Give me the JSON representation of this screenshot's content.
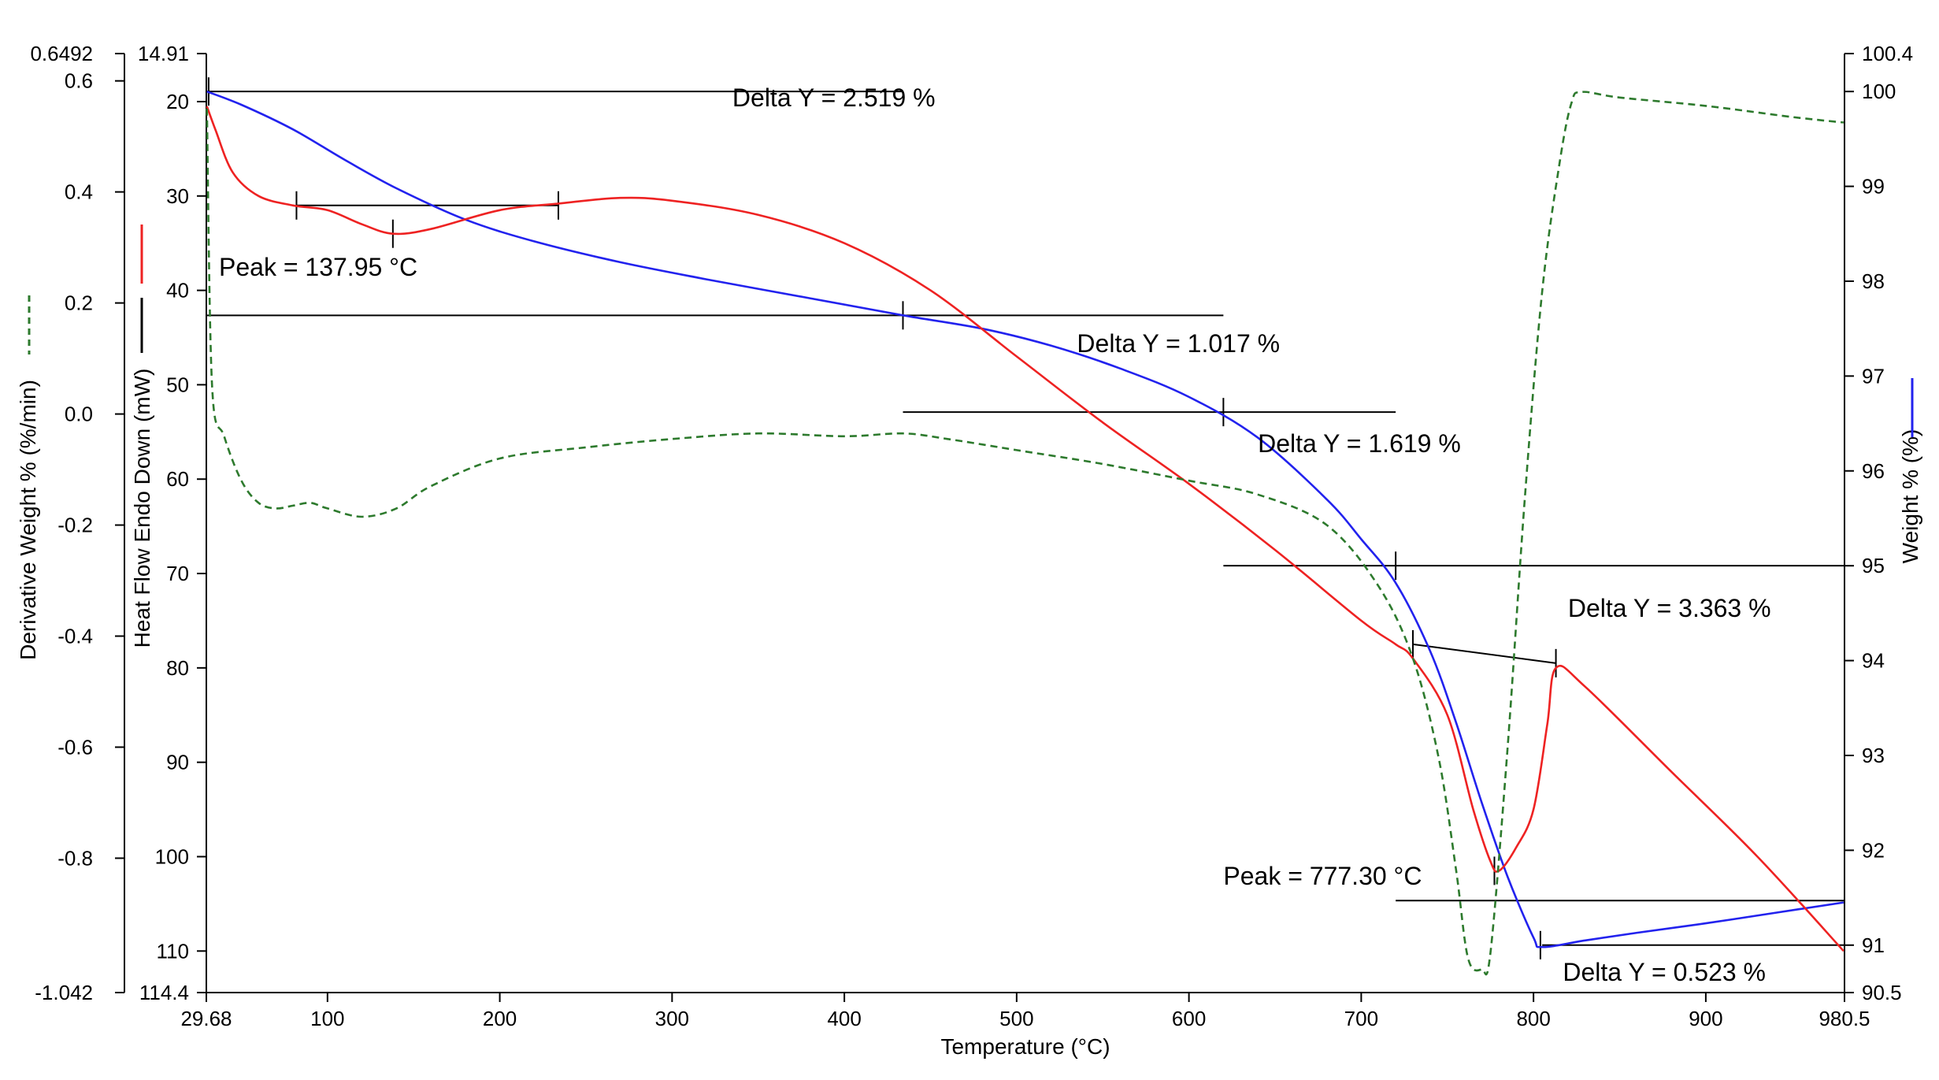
{
  "chart_data": {
    "type": "line",
    "title": "",
    "xlabel": "Temperature (°C)",
    "xlim": [
      29.68,
      980.5
    ],
    "x_ticks": [
      "29.68",
      "100",
      "200",
      "300",
      "400",
      "500",
      "600",
      "700",
      "800",
      "900",
      "980.5"
    ],
    "y_axes": {
      "derivative": {
        "label": "Derivative Weight % (%/min)",
        "ylim": [
          -1.042,
          0.6492
        ],
        "ticks": [
          "0.6492",
          "0.6",
          "0.4",
          "0.2",
          "0.0",
          "-0.2",
          "-0.4",
          "-0.6",
          "-0.8",
          "-1.042"
        ]
      },
      "heat_flow": {
        "label": "Heat Flow Endo Down (mW)",
        "ylim_top_to_bottom": [
          14.91,
          114.4
        ],
        "ticks": [
          "14.91",
          "20",
          "30",
          "40",
          "50",
          "60",
          "70",
          "80",
          "90",
          "100",
          "110",
          "114.4"
        ]
      },
      "weight": {
        "label": "Weight % (%)",
        "ylim": [
          90.5,
          100.4
        ],
        "ticks": [
          "100.4",
          "100",
          "99",
          "98",
          "97",
          "96",
          "95",
          "94",
          "93",
          "92",
          "91",
          "90.5"
        ]
      }
    },
    "series": [
      {
        "axis": "weight",
        "color": "#2222ee",
        "style": "solid",
        "x": [
          30,
          50,
          80,
          110,
          140,
          180,
          220,
          270,
          320,
          380,
          434,
          480,
          520,
          560,
          600,
          640,
          680,
          700,
          720,
          740,
          755,
          770,
          785,
          800,
          805,
          830,
          860,
          900,
          940,
          980
        ],
        "y": [
          100.0,
          99.86,
          99.6,
          99.28,
          98.98,
          98.65,
          98.42,
          98.2,
          98.02,
          97.82,
          97.64,
          97.5,
          97.32,
          97.08,
          96.78,
          96.35,
          95.7,
          95.28,
          94.82,
          94.1,
          93.35,
          92.5,
          91.72,
          91.08,
          90.98,
          91.05,
          91.13,
          91.23,
          91.34,
          91.45
        ]
      },
      {
        "axis": "heat_flow",
        "color": "#ee2222",
        "style": "solid",
        "x": [
          30,
          35,
          45,
          60,
          80,
          100,
          120,
          137.95,
          160,
          200,
          234,
          270,
          300,
          350,
          400,
          450,
          500,
          550,
          600,
          650,
          700,
          720,
          730,
          750,
          765,
          775,
          780,
          790,
          800,
          808,
          813,
          830,
          880,
          930,
          980
        ],
        "y": [
          20.5,
          23,
          27.5,
          30,
          31,
          31.5,
          33,
          34,
          33.5,
          31.5,
          30.8,
          30.2,
          30.5,
          32,
          35,
          40,
          47,
          54,
          60.5,
          67.5,
          75,
          77.5,
          79,
          85,
          95,
          100.5,
          101.5,
          99,
          95,
          86,
          80,
          82,
          91,
          100,
          110
        ]
      },
      {
        "axis": "derivative",
        "color": "#2d7a2d",
        "style": "dashed",
        "x": [
          30,
          33,
          40,
          50,
          60,
          70,
          80,
          90,
          100,
          120,
          140,
          160,
          200,
          250,
          300,
          350,
          400,
          434,
          460,
          500,
          550,
          600,
          640,
          680,
          710,
          730,
          745,
          755,
          762,
          770,
          775,
          785,
          795,
          805,
          815,
          822,
          828,
          850,
          900,
          950,
          980
        ],
        "y": [
          0.55,
          0.05,
          -0.04,
          -0.12,
          -0.16,
          -0.17,
          -0.165,
          -0.16,
          -0.17,
          -0.185,
          -0.17,
          -0.13,
          -0.08,
          -0.06,
          -0.045,
          -0.035,
          -0.04,
          -0.035,
          -0.045,
          -0.065,
          -0.09,
          -0.12,
          -0.145,
          -0.2,
          -0.31,
          -0.44,
          -0.62,
          -0.82,
          -0.98,
          -1.0,
          -0.97,
          -0.6,
          -0.15,
          0.22,
          0.45,
          0.56,
          0.58,
          0.57,
          0.555,
          0.535,
          0.525
        ]
      }
    ],
    "annotations": [
      {
        "text": "Delta Y = 2.519 %"
      },
      {
        "text": "Peak = 137.95 °C"
      },
      {
        "text": "Delta Y = 1.017 %"
      },
      {
        "text": "Delta Y = 1.619 %"
      },
      {
        "text": "Delta Y = 3.363 %"
      },
      {
        "text": "Peak = 777.30 °C"
      },
      {
        "text": "Delta Y = 0.523 %"
      }
    ]
  }
}
